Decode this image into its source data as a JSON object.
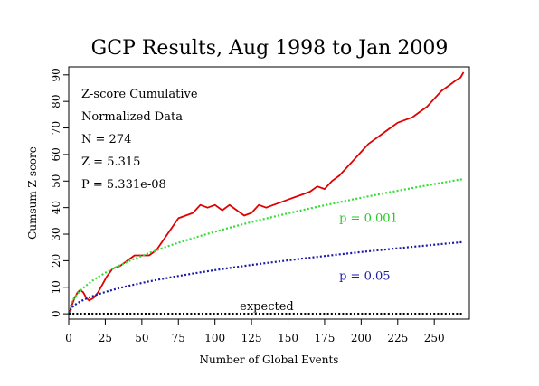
{
  "chart_data": {
    "type": "line",
    "title": "GCP Results, Aug 1998 to Jan 2009",
    "xlabel": "Number of Global Events",
    "ylabel": "Cumsum Z-score",
    "xlim": [
      0,
      274
    ],
    "ylim": [
      -2,
      93
    ],
    "xticks": [
      0,
      25,
      50,
      75,
      100,
      125,
      150,
      175,
      200,
      225,
      250
    ],
    "yticks": [
      0,
      10,
      20,
      30,
      40,
      50,
      60,
      70,
      80,
      90
    ],
    "grid": false,
    "stats": [
      "Z-score Cumulative",
      "Normalized Data",
      "N = 274",
      "Z = 5.315",
      "P = 5.331e-08"
    ],
    "series": [
      {
        "role": "data",
        "color": "#e00000",
        "style": "solid",
        "x": [
          0,
          2,
          4,
          6,
          8,
          10,
          12,
          14,
          17,
          20,
          23,
          26,
          30,
          35,
          40,
          45,
          50,
          55,
          60,
          65,
          70,
          75,
          80,
          85,
          90,
          95,
          100,
          105,
          110,
          115,
          120,
          125,
          130,
          135,
          140,
          145,
          150,
          155,
          160,
          165,
          170,
          175,
          180,
          185,
          190,
          195,
          200,
          205,
          210,
          215,
          220,
          225,
          230,
          235,
          240,
          245,
          250,
          255,
          260,
          265,
          268,
          270
        ],
        "y": [
          0,
          3,
          6,
          8,
          9,
          8,
          6,
          5,
          6,
          8,
          11,
          14,
          17,
          18,
          20,
          22,
          22,
          22,
          24,
          28,
          32,
          36,
          37,
          38,
          41,
          40,
          41,
          39,
          41,
          39,
          37,
          38,
          41,
          40,
          41,
          42,
          43,
          44,
          45,
          46,
          48,
          47,
          50,
          52,
          55,
          58,
          61,
          64,
          66,
          68,
          70,
          72,
          73,
          74,
          76,
          78,
          81,
          84,
          86,
          88,
          89,
          91
        ]
      },
      {
        "role": "threshold",
        "label": "p = 0.001",
        "color": "#33dd33",
        "style": "dotted",
        "coef": 3.09
      },
      {
        "role": "threshold",
        "label": "p = 0.05",
        "color": "#1a1aaa",
        "style": "dotted",
        "coef": 1.645
      },
      {
        "role": "baseline",
        "label": "expected",
        "color": "#000000",
        "style": "dotted",
        "y": 0
      }
    ]
  }
}
